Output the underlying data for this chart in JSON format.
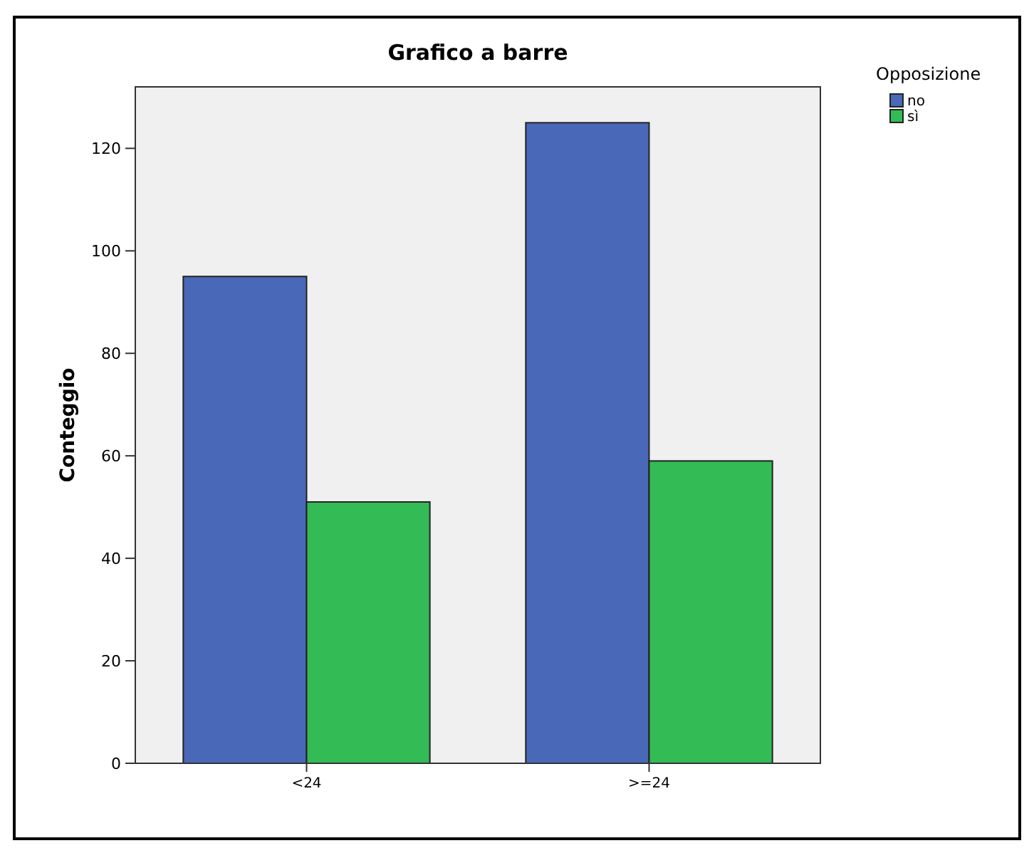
{
  "chart_data": {
    "type": "bar",
    "title": "Grafico a barre",
    "ylabel": "Conteggio",
    "legend_title": "Opposizione",
    "categories": [
      "<24",
      ">=24"
    ],
    "series": [
      {
        "name": "no",
        "color": "#4a68b8",
        "values": [
          95,
          125
        ]
      },
      {
        "name": "sì",
        "color": "#33bb55",
        "values": [
          51,
          59
        ]
      }
    ],
    "ylim": [
      0,
      132
    ],
    "yticks": [
      0,
      20,
      40,
      60,
      80,
      100,
      120
    ],
    "grid": false,
    "legend": "top right"
  }
}
